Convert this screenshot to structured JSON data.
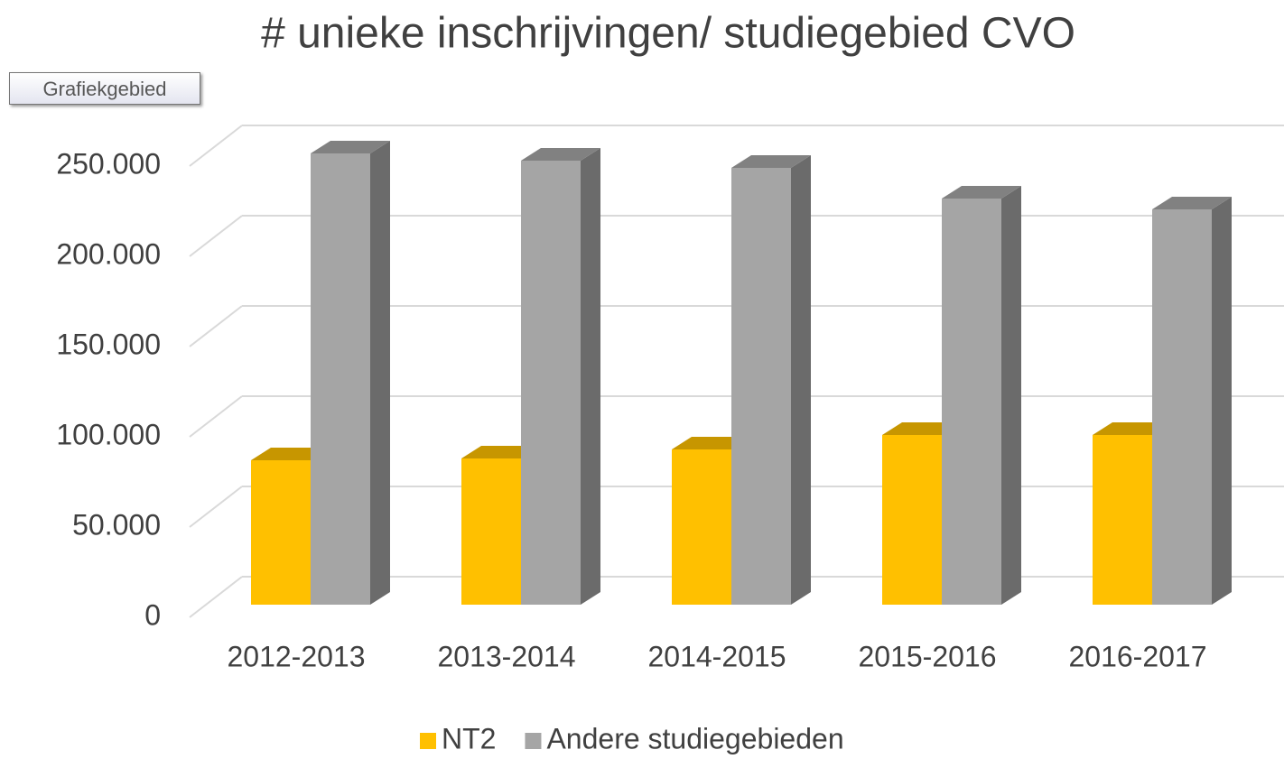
{
  "tooltip": "Grafiekgebied",
  "chart_data": {
    "type": "bar3d",
    "title": "# unieke inschrijvingen/ studiegebied CVO",
    "categories": [
      "2012-2013",
      "2013-2014",
      "2014-2015",
      "2015-2016",
      "2016-2017"
    ],
    "series": [
      {
        "name": "NT2",
        "color": "#ffc000",
        "values": [
          80000,
          81000,
          86000,
          94000,
          94000
        ]
      },
      {
        "name": "Andere studiegebieden",
        "color": "#a5a5a5",
        "values": [
          250000,
          246000,
          242000,
          225000,
          219000
        ]
      }
    ],
    "ylim": [
      0,
      250000
    ],
    "yticks": [
      0,
      {
        "value": 50000,
        "label": "50.000"
      },
      {
        "value": 100000,
        "label": "100.000"
      },
      {
        "value": 150000,
        "label": "150.000"
      },
      {
        "value": 200000,
        "label": "200.000"
      },
      {
        "value": 250000,
        "label": "250.000"
      }
    ],
    "grid": true,
    "legend": "bottom"
  }
}
